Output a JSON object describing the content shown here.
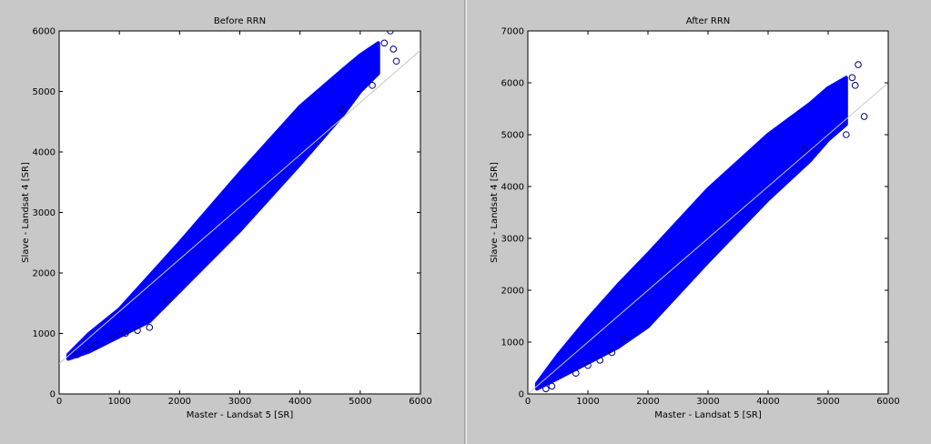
{
  "chart_data": [
    {
      "type": "scatter",
      "title": "Before RRN",
      "xlabel": "Master - Landsat 5 [SR]",
      "ylabel": "Slave - Landsat 4 [SR]",
      "xlim": [
        0,
        6000
      ],
      "ylim": [
        0,
        6000
      ],
      "xticks": [
        0,
        1000,
        2000,
        3000,
        4000,
        5000,
        6000
      ],
      "yticks": [
        0,
        1000,
        2000,
        3000,
        4000,
        5000,
        6000
      ],
      "color": "#0000ff",
      "marker_color": "#000080",
      "envelope": {
        "x": [
          150,
          500,
          1000,
          1500,
          2000,
          3000,
          4000,
          4700,
          5000,
          5300
        ],
        "upper": [
          650,
          1000,
          1400,
          1950,
          2500,
          3650,
          4750,
          5350,
          5600,
          5800
        ],
        "lower": [
          580,
          700,
          950,
          1200,
          1700,
          2700,
          3800,
          4600,
          5000,
          5300
        ]
      },
      "points": {
        "x": [
          5500,
          5400,
          5550,
          5600,
          5200,
          4700,
          1300,
          1500,
          1800,
          450,
          300,
          600,
          1100,
          900
        ],
        "y": [
          6000,
          5800,
          5700,
          5500,
          5100,
          4700,
          1050,
          1100,
          1550,
          750,
          650,
          800,
          1000,
          950
        ]
      },
      "reference_line": {
        "x": [
          0,
          6000
        ],
        "y": [
          500,
          5680
        ],
        "color": "#c8c8c8"
      }
    },
    {
      "type": "scatter",
      "title": "After RRN",
      "xlabel": "Master - Landsat 5 [SR]",
      "ylabel": "Slave - Landsat 4 [SR]",
      "xlim": [
        0,
        6000
      ],
      "ylim": [
        0,
        7000
      ],
      "xticks": [
        0,
        1000,
        2000,
        3000,
        4000,
        5000,
        6000
      ],
      "yticks": [
        0,
        1000,
        2000,
        3000,
        4000,
        5000,
        6000,
        7000
      ],
      "color": "#0000ff",
      "marker_color": "#000080",
      "envelope": {
        "x": [
          150,
          500,
          1000,
          1500,
          2000,
          3000,
          4000,
          4700,
          5000,
          5300
        ],
        "upper": [
          200,
          750,
          1450,
          2100,
          2700,
          3950,
          5000,
          5600,
          5900,
          6100
        ],
        "lower": [
          100,
          300,
          600,
          900,
          1300,
          2550,
          3750,
          4500,
          4900,
          5200
        ]
      },
      "points": {
        "x": [
          5500,
          5400,
          5450,
          5600,
          5300,
          4600,
          1400,
          1200,
          1600,
          800,
          400,
          300,
          1000
        ],
        "y": [
          6350,
          6100,
          5950,
          5350,
          5000,
          4700,
          800,
          650,
          1050,
          400,
          150,
          100,
          550
        ]
      },
      "reference_line": {
        "x": [
          0,
          6000
        ],
        "y": [
          0,
          6000
        ],
        "color": "#c8c8c8"
      }
    }
  ]
}
